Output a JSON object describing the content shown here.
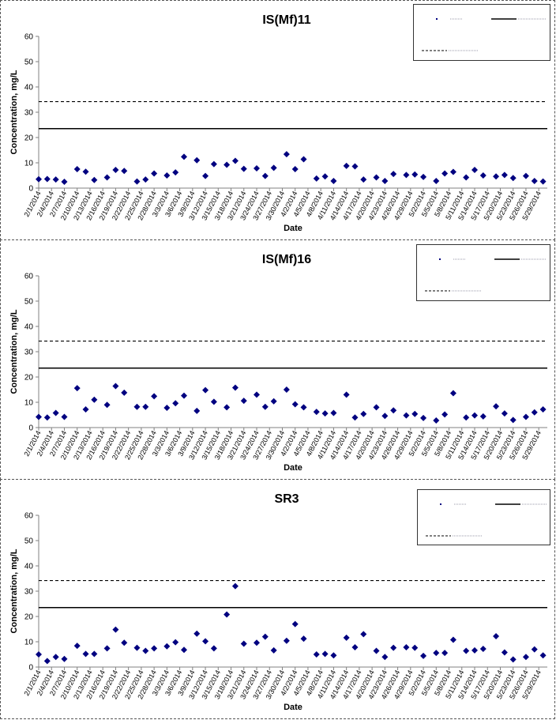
{
  "colors": {
    "marker": "#000080",
    "line": "#000000",
    "axis": "#808080",
    "text": "#000000"
  },
  "chart_data": [
    {
      "type": "scatter",
      "title": "IS(Mf)11",
      "xlabel": "Date",
      "ylabel": "Concentration, mg/L",
      "ylim": [
        0,
        60
      ],
      "yticks": [
        0,
        10,
        20,
        30,
        40,
        50,
        60
      ],
      "xlim": [
        "2/1/2014",
        "5/31/2014"
      ],
      "xtick_labels": [
        "2/1/2014",
        "2/4/2014",
        "2/7/2014",
        "2/10/2014",
        "2/13/2014",
        "2/16/2014",
        "2/19/2014",
        "2/22/2014",
        "2/25/2014",
        "2/28/2014",
        "3/3/2014",
        "3/6/2014",
        "3/9/2014",
        "3/12/2014",
        "3/15/2014",
        "3/18/2014",
        "3/21/2014",
        "3/24/2014",
        "3/27/2014",
        "3/30/2014",
        "4/2/2014",
        "4/5/2014",
        "4/8/2014",
        "4/11/2014",
        "4/14/2014",
        "4/17/2014",
        "4/20/2014",
        "4/23/2014",
        "4/26/2014",
        "4/29/2014",
        "5/2/2014",
        "5/5/2014",
        "5/8/2014",
        "5/11/2014",
        "5/14/2014",
        "5/17/2014",
        "5/20/2014",
        "5/23/2014",
        "5/26/2014",
        "5/29/2014"
      ],
      "grid": false,
      "legend_position": "top-right",
      "legend_text_legible": false,
      "series": [
        {
          "marker": "diamond",
          "points": [
            [
              "2/1/2014",
              3.5
            ],
            [
              "2/3/2014",
              3.6
            ],
            [
              "2/5/2014",
              3.4
            ],
            [
              "2/7/2014",
              2.5
            ],
            [
              "2/10/2014",
              7.5
            ],
            [
              "2/12/2014",
              6.5
            ],
            [
              "2/14/2014",
              3.2
            ],
            [
              "2/17/2014",
              4.2
            ],
            [
              "2/19/2014",
              7.2
            ],
            [
              "2/21/2014",
              6.8
            ],
            [
              "2/24/2014",
              2.6
            ],
            [
              "2/26/2014",
              3.4
            ],
            [
              "2/28/2014",
              5.8
            ],
            [
              "3/3/2014",
              5.0
            ],
            [
              "3/5/2014",
              6.2
            ],
            [
              "3/7/2014",
              12.4
            ],
            [
              "3/10/2014",
              11.0
            ],
            [
              "3/12/2014",
              4.8
            ],
            [
              "3/14/2014",
              9.5
            ],
            [
              "3/17/2014",
              9.2
            ],
            [
              "3/19/2014",
              10.8
            ],
            [
              "3/21/2014",
              7.6
            ],
            [
              "3/24/2014",
              7.8
            ],
            [
              "3/26/2014",
              4.8
            ],
            [
              "3/28/2014",
              8.0
            ],
            [
              "3/31/2014",
              13.4
            ],
            [
              "4/2/2014",
              7.5
            ],
            [
              "4/4/2014",
              11.4
            ],
            [
              "4/7/2014",
              3.8
            ],
            [
              "4/9/2014",
              4.6
            ],
            [
              "4/11/2014",
              2.8
            ],
            [
              "4/14/2014",
              8.8
            ],
            [
              "4/16/2014",
              8.6
            ],
            [
              "4/18/2014",
              3.4
            ],
            [
              "4/21/2014",
              4.2
            ],
            [
              "4/23/2014",
              2.8
            ],
            [
              "4/25/2014",
              5.6
            ],
            [
              "4/28/2014",
              5.2
            ],
            [
              "4/30/2014",
              5.4
            ],
            [
              "5/2/2014",
              4.4
            ],
            [
              "5/5/2014",
              2.8
            ],
            [
              "5/7/2014",
              5.8
            ],
            [
              "5/9/2014",
              6.4
            ],
            [
              "5/12/2014",
              4.2
            ],
            [
              "5/14/2014",
              7.2
            ],
            [
              "5/16/2014",
              5.0
            ],
            [
              "5/19/2014",
              4.6
            ],
            [
              "5/21/2014",
              5.2
            ],
            [
              "5/23/2014",
              4.0
            ],
            [
              "5/26/2014",
              4.8
            ],
            [
              "5/28/2014",
              2.8
            ],
            [
              "5/30/2014",
              2.6
            ]
          ]
        },
        {
          "style": "solid",
          "y": 23.5
        },
        {
          "style": "dashed",
          "y": 34.2
        }
      ]
    },
    {
      "type": "scatter",
      "title": "IS(Mf)16",
      "xlabel": "Date",
      "ylabel": "Concentration, mg/L",
      "ylim": [
        0,
        60
      ],
      "yticks": [
        0,
        10,
        20,
        30,
        40,
        50,
        60
      ],
      "xlim": [
        "2/1/2014",
        "5/31/2014"
      ],
      "xtick_labels": [
        "2/1/2014",
        "2/4/2014",
        "2/7/2014",
        "2/10/2014",
        "2/13/2014",
        "2/16/2014",
        "2/19/2014",
        "2/22/2014",
        "2/25/2014",
        "2/28/2014",
        "3/3/2014",
        "3/6/2014",
        "3/9/2014",
        "3/12/2014",
        "3/15/2014",
        "3/18/2014",
        "3/21/2014",
        "3/24/2014",
        "3/27/2014",
        "3/30/2014",
        "4/2/2014",
        "4/5/2014",
        "4/8/2014",
        "4/11/2014",
        "4/14/2014",
        "4/17/2014",
        "4/20/2014",
        "4/23/2014",
        "4/26/2014",
        "4/29/2014",
        "5/2/2014",
        "5/5/2014",
        "5/8/2014",
        "5/11/2014",
        "5/14/2014",
        "5/17/2014",
        "5/20/2014",
        "5/23/2014",
        "5/26/2014",
        "5/29/2014"
      ],
      "grid": false,
      "legend_position": "top-right",
      "legend_text_legible": false,
      "series": [
        {
          "marker": "diamond",
          "points": [
            [
              "2/1/2014",
              4.2
            ],
            [
              "2/3/2014",
              4.0
            ],
            [
              "2/5/2014",
              5.8
            ],
            [
              "2/7/2014",
              4.2
            ],
            [
              "2/10/2014",
              15.6
            ],
            [
              "2/12/2014",
              7.2
            ],
            [
              "2/14/2014",
              11.0
            ],
            [
              "2/17/2014",
              9.0
            ],
            [
              "2/19/2014",
              16.4
            ],
            [
              "2/21/2014",
              13.8
            ],
            [
              "2/24/2014",
              8.2
            ],
            [
              "2/26/2014",
              8.2
            ],
            [
              "2/28/2014",
              12.4
            ],
            [
              "3/3/2014",
              7.8
            ],
            [
              "3/5/2014",
              9.6
            ],
            [
              "3/7/2014",
              12.6
            ],
            [
              "3/10/2014",
              6.6
            ],
            [
              "3/12/2014",
              14.8
            ],
            [
              "3/14/2014",
              10.2
            ],
            [
              "3/17/2014",
              8.0
            ],
            [
              "3/19/2014",
              15.8
            ],
            [
              "3/21/2014",
              10.6
            ],
            [
              "3/24/2014",
              13.0
            ],
            [
              "3/26/2014",
              8.2
            ],
            [
              "3/28/2014",
              10.4
            ],
            [
              "3/31/2014",
              15.0
            ],
            [
              "4/2/2014",
              9.2
            ],
            [
              "4/4/2014",
              8.0
            ],
            [
              "4/7/2014",
              6.2
            ],
            [
              "4/9/2014",
              5.6
            ],
            [
              "4/11/2014",
              5.8
            ],
            [
              "4/14/2014",
              13.0
            ],
            [
              "4/16/2014",
              4.0
            ],
            [
              "4/18/2014",
              5.4
            ],
            [
              "4/21/2014",
              8.0
            ],
            [
              "4/23/2014",
              4.6
            ],
            [
              "4/25/2014",
              6.8
            ],
            [
              "4/28/2014",
              4.8
            ],
            [
              "4/30/2014",
              5.4
            ],
            [
              "5/2/2014",
              3.8
            ],
            [
              "5/5/2014",
              2.8
            ],
            [
              "5/7/2014",
              5.2
            ],
            [
              "5/9/2014",
              13.6
            ],
            [
              "5/12/2014",
              4.0
            ],
            [
              "5/14/2014",
              4.8
            ],
            [
              "5/16/2014",
              4.4
            ],
            [
              "5/19/2014",
              8.4
            ],
            [
              "5/21/2014",
              5.6
            ],
            [
              "5/23/2014",
              3.0
            ],
            [
              "5/26/2014",
              4.2
            ],
            [
              "5/28/2014",
              6.0
            ],
            [
              "5/30/2014",
              7.2
            ]
          ]
        },
        {
          "style": "solid",
          "y": 23.5
        },
        {
          "style": "dashed",
          "y": 34.2
        }
      ]
    },
    {
      "type": "scatter",
      "title": "SR3",
      "xlabel": "Date",
      "ylabel": "Concentration, mg/L",
      "ylim": [
        0,
        60
      ],
      "yticks": [
        0,
        10,
        20,
        30,
        40,
        50,
        60
      ],
      "xlim": [
        "2/1/2014",
        "5/31/2014"
      ],
      "xtick_labels": [
        "2/1/2014",
        "2/4/2014",
        "2/7/2014",
        "2/10/2014",
        "2/13/2014",
        "2/16/2014",
        "2/19/2014",
        "2/22/2014",
        "2/25/2014",
        "2/28/2014",
        "3/3/2014",
        "3/6/2014",
        "3/9/2014",
        "3/12/2014",
        "3/15/2014",
        "3/18/2014",
        "3/21/2014",
        "3/24/2014",
        "3/27/2014",
        "3/30/2014",
        "4/2/2014",
        "4/5/2014",
        "4/8/2014",
        "4/11/2014",
        "4/14/2014",
        "4/17/2014",
        "4/20/2014",
        "4/23/2014",
        "4/26/2014",
        "4/29/2014",
        "5/2/2014",
        "5/5/2014",
        "5/8/2014",
        "5/11/2014",
        "5/14/2014",
        "5/17/2014",
        "5/20/2014",
        "5/23/2014",
        "5/26/2014",
        "5/29/2014"
      ],
      "grid": false,
      "legend_position": "top-right",
      "legend_text_legible": false,
      "series": [
        {
          "marker": "diamond",
          "points": [
            [
              "2/1/2014",
              5.0
            ],
            [
              "2/3/2014",
              2.4
            ],
            [
              "2/5/2014",
              4.0
            ],
            [
              "2/7/2014",
              3.2
            ],
            [
              "2/10/2014",
              8.4
            ],
            [
              "2/12/2014",
              5.2
            ],
            [
              "2/14/2014",
              5.2
            ],
            [
              "2/17/2014",
              7.4
            ],
            [
              "2/19/2014",
              14.8
            ],
            [
              "2/21/2014",
              9.6
            ],
            [
              "2/24/2014",
              7.6
            ],
            [
              "2/26/2014",
              6.4
            ],
            [
              "2/28/2014",
              7.4
            ],
            [
              "3/3/2014",
              8.2
            ],
            [
              "3/5/2014",
              9.8
            ],
            [
              "3/7/2014",
              6.8
            ],
            [
              "3/10/2014",
              13.2
            ],
            [
              "3/12/2014",
              10.2
            ],
            [
              "3/14/2014",
              7.4
            ],
            [
              "3/17/2014",
              20.8
            ],
            [
              "3/19/2014",
              32.0
            ],
            [
              "3/21/2014",
              9.2
            ],
            [
              "3/24/2014",
              9.6
            ],
            [
              "3/26/2014",
              12.0
            ],
            [
              "3/28/2014",
              6.6
            ],
            [
              "3/31/2014",
              10.4
            ],
            [
              "4/2/2014",
              17.0
            ],
            [
              "4/4/2014",
              11.2
            ],
            [
              "4/7/2014",
              5.0
            ],
            [
              "4/9/2014",
              5.2
            ],
            [
              "4/11/2014",
              4.6
            ],
            [
              "4/14/2014",
              11.6
            ],
            [
              "4/16/2014",
              7.8
            ],
            [
              "4/18/2014",
              13.0
            ],
            [
              "4/21/2014",
              6.4
            ],
            [
              "4/23/2014",
              4.0
            ],
            [
              "4/25/2014",
              7.6
            ],
            [
              "4/28/2014",
              7.8
            ],
            [
              "4/30/2014",
              7.6
            ],
            [
              "5/2/2014",
              4.4
            ],
            [
              "5/5/2014",
              5.6
            ],
            [
              "5/7/2014",
              5.6
            ],
            [
              "5/9/2014",
              10.8
            ],
            [
              "5/12/2014",
              6.4
            ],
            [
              "5/14/2014",
              6.6
            ],
            [
              "5/16/2014",
              7.2
            ],
            [
              "5/19/2014",
              12.2
            ],
            [
              "5/21/2014",
              5.8
            ],
            [
              "5/23/2014",
              3.0
            ],
            [
              "5/26/2014",
              4.0
            ],
            [
              "5/28/2014",
              7.0
            ],
            [
              "5/30/2014",
              4.6
            ]
          ]
        },
        {
          "style": "solid",
          "y": 23.5
        },
        {
          "style": "dashed",
          "y": 34.2
        }
      ]
    }
  ]
}
